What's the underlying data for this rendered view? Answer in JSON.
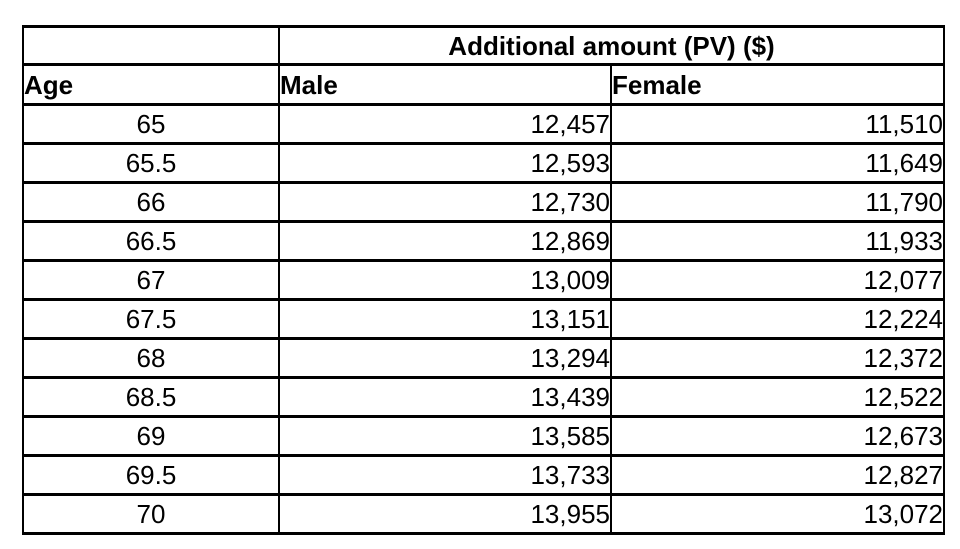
{
  "table": {
    "spanning_header": "Additional amount (PV) ($)",
    "columns": {
      "age": "Age",
      "male": "Male",
      "female": "Female"
    },
    "rows": [
      {
        "age": "65",
        "male": "12,457",
        "female": "11,510"
      },
      {
        "age": "65.5",
        "male": "12,593",
        "female": "11,649"
      },
      {
        "age": "66",
        "male": "12,730",
        "female": "11,790"
      },
      {
        "age": "66.5",
        "male": "12,869",
        "female": "11,933"
      },
      {
        "age": "67",
        "male": "13,009",
        "female": "12,077"
      },
      {
        "age": "67.5",
        "male": "13,151",
        "female": "12,224"
      },
      {
        "age": "68",
        "male": "13,294",
        "female": "12,372"
      },
      {
        "age": "68.5",
        "male": "13,439",
        "female": "12,522"
      },
      {
        "age": "69",
        "male": "13,585",
        "female": "12,673"
      },
      {
        "age": "69.5",
        "male": "13,733",
        "female": "12,827"
      },
      {
        "age": "70",
        "male": "13,955",
        "female": "13,072"
      }
    ]
  }
}
